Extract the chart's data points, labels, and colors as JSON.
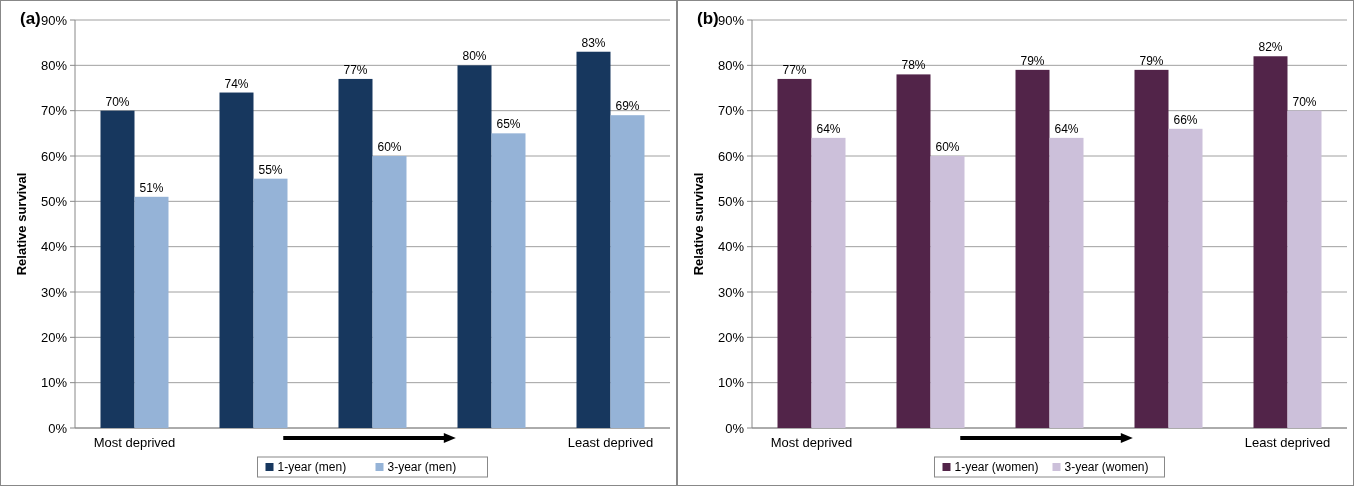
{
  "chart_data": [
    {
      "type": "bar",
      "title": "(a)",
      "ylabel": "Relative survival",
      "categories": [
        "Most deprived",
        null,
        null,
        null,
        "Least deprived"
      ],
      "ylim": [
        0,
        90
      ],
      "yticks": [
        {
          "value": 0,
          "label": "0%"
        },
        {
          "value": 10,
          "label": "10%"
        },
        {
          "value": 20,
          "label": "20%"
        },
        {
          "value": 30,
          "label": "30%"
        },
        {
          "value": 40,
          "label": "40%"
        },
        {
          "value": 50,
          "label": "50%"
        },
        {
          "value": 60,
          "label": "60%"
        },
        {
          "value": 70,
          "label": "70%"
        },
        {
          "value": 80,
          "label": "80%"
        },
        {
          "value": 90,
          "label": "90%"
        }
      ],
      "grid": "y",
      "legend": "bottom",
      "series": [
        {
          "name": "1-year (men)",
          "color": "#17375e",
          "values": [
            70,
            74,
            77,
            80,
            83
          ],
          "value_labels": [
            "70%",
            "74%",
            "77%",
            "80%",
            "83%"
          ]
        },
        {
          "name": "3-year (men)",
          "color": "#95b3d7",
          "values": [
            51,
            55,
            60,
            65,
            69
          ],
          "value_labels": [
            "51%",
            "55%",
            "60%",
            "65%",
            "69%"
          ]
        }
      ]
    },
    {
      "type": "bar",
      "title": "(b)",
      "ylabel": "Relative survival",
      "categories": [
        "Most deprived",
        null,
        null,
        null,
        "Least deprived"
      ],
      "ylim": [
        0,
        90
      ],
      "yticks": [
        {
          "value": 0,
          "label": "0%"
        },
        {
          "value": 10,
          "label": "10%"
        },
        {
          "value": 20,
          "label": "20%"
        },
        {
          "value": 30,
          "label": "30%"
        },
        {
          "value": 40,
          "label": "40%"
        },
        {
          "value": 50,
          "label": "50%"
        },
        {
          "value": 60,
          "label": "60%"
        },
        {
          "value": 70,
          "label": "70%"
        },
        {
          "value": 80,
          "label": "80%"
        },
        {
          "value": 90,
          "label": "90%"
        }
      ],
      "grid": "y",
      "legend": "bottom",
      "series": [
        {
          "name": "1-year (women)",
          "color": "#522449",
          "values": [
            77,
            78,
            79,
            79,
            82
          ],
          "value_labels": [
            "77%",
            "78%",
            "79%",
            "79%",
            "82%"
          ]
        },
        {
          "name": "3-year (women)",
          "color": "#ccc0da",
          "values": [
            64,
            60,
            64,
            66,
            70
          ],
          "value_labels": [
            "64%",
            "60%",
            "64%",
            "66%",
            "70%"
          ]
        }
      ]
    }
  ]
}
